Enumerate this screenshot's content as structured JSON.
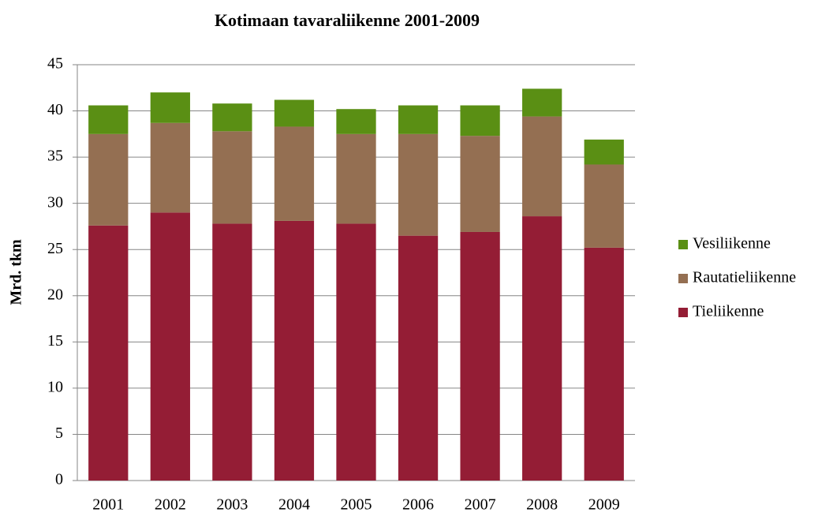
{
  "chart_data": {
    "type": "stacked_bar",
    "title": "Kotimaan tavaraliikenne 2001-2009",
    "y_label": "Mrd. tkm",
    "categories": [
      "2001",
      "2002",
      "2003",
      "2004",
      "2005",
      "2006",
      "2007",
      "2008",
      "2009"
    ],
    "series": [
      {
        "name": "Tieliikenne",
        "color": "#941d35",
        "values": [
          27.6,
          29.0,
          27.8,
          28.1,
          27.8,
          26.5,
          26.9,
          28.6,
          25.2
        ]
      },
      {
        "name": "Rautatieliikenne",
        "color": "#946f52",
        "values": [
          9.9,
          9.7,
          10.0,
          10.2,
          9.7,
          11.0,
          10.4,
          10.8,
          9.0
        ]
      },
      {
        "name": "Vesiliikenne",
        "color": "#5a8f14",
        "values": [
          3.1,
          3.3,
          3.0,
          2.9,
          2.7,
          3.1,
          3.3,
          3.0,
          2.7
        ]
      }
    ],
    "ylim": [
      0,
      45
    ],
    "yticks": [
      0,
      5,
      10,
      15,
      20,
      25,
      30,
      35,
      40,
      45
    ],
    "grid": true,
    "legend": "right"
  }
}
